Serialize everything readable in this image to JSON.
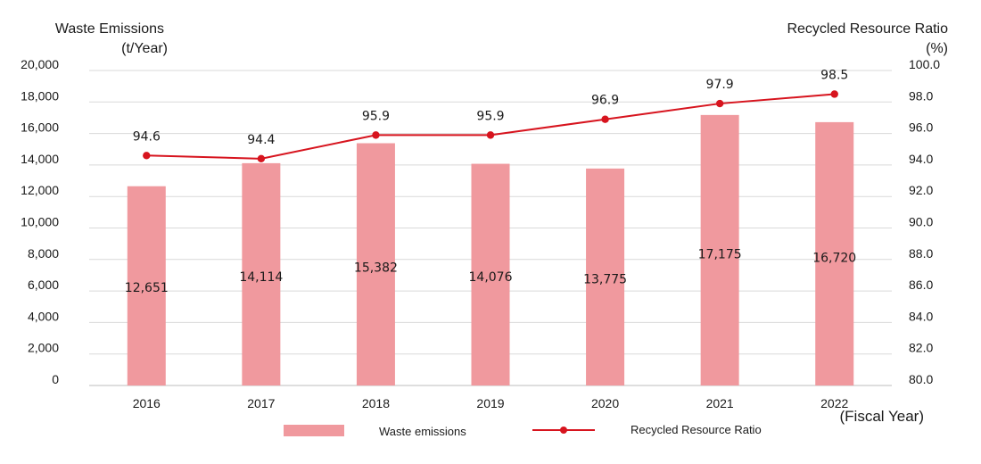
{
  "chart_data": {
    "type": "bar",
    "categories": [
      "2016",
      "2017",
      "2018",
      "2019",
      "2020",
      "2021",
      "2022"
    ],
    "series": [
      {
        "name": "Waste emissions",
        "type": "bar",
        "axis": "left",
        "color": "#f0999e",
        "values": [
          12651,
          14114,
          15382,
          14076,
          13775,
          17175,
          16720
        ],
        "value_labels": [
          "12,651",
          "14,114",
          "15,382",
          "14,076",
          "13,775",
          "17,175",
          "16,720"
        ]
      },
      {
        "name": "Recycled Resource Ratio",
        "type": "line",
        "axis": "right",
        "color": "#d7141e",
        "values": [
          94.6,
          94.4,
          95.9,
          95.9,
          96.9,
          97.9,
          98.5
        ],
        "value_labels": [
          "94.6",
          "94.4",
          "95.9",
          "95.9",
          "96.9",
          "97.9",
          "98.5"
        ]
      }
    ],
    "left_axis": {
      "title_line1": "Waste Emissions",
      "title_line2": "(t/Year)",
      "range": [
        0,
        20000
      ],
      "ticks": [
        "0",
        "2,000",
        "4,000",
        "6,000",
        "8,000",
        "10,000",
        "12,000",
        "14,000",
        "16,000",
        "18,000",
        "20,000"
      ]
    },
    "right_axis": {
      "title_line1": "Recycled Resource Ratio",
      "title_line2": "(%)",
      "range": [
        80,
        100
      ],
      "ticks": [
        "80.0",
        "82.0",
        "84.0",
        "86.0",
        "88.0",
        "90.0",
        "92.0",
        "94.0",
        "96.0",
        "98.0",
        "100.0"
      ]
    },
    "x_unit": "(Fiscal Year)",
    "grid": true,
    "legend_position": "bottom"
  }
}
